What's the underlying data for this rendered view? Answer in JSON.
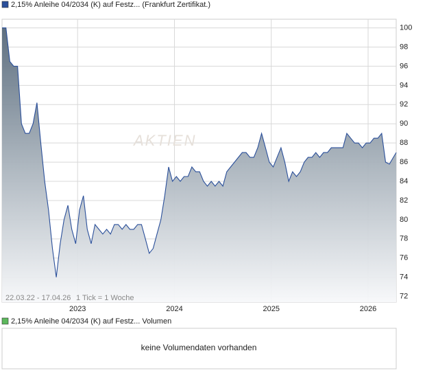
{
  "chart_data": {
    "type": "area",
    "title": "2,15% Anleihe 04/2034 (K) auf Festz... (Frankfurt Zertifikat.)",
    "date_range": "22.03.22 - 17.04.26",
    "tick_note": "1 Tick = 1 Woche",
    "watermark": "AKTIEN",
    "xlim": [
      2022.22,
      2026.29
    ],
    "xticks": [
      2023,
      2024,
      2025,
      2026
    ],
    "ylim": [
      71.4,
      100.9
    ],
    "yticks": [
      72,
      74,
      76,
      78,
      80,
      82,
      84,
      86,
      88,
      90,
      92,
      94,
      96,
      98,
      100
    ],
    "grid": true,
    "series": [
      {
        "color": "#2a4f9a",
        "x": [
          2022.22,
          2022.26,
          2022.3,
          2022.34,
          2022.38,
          2022.42,
          2022.46,
          2022.5,
          2022.54,
          2022.58,
          2022.62,
          2022.66,
          2022.7,
          2022.74,
          2022.78,
          2022.82,
          2022.86,
          2022.9,
          2022.94,
          2022.98,
          2023.02,
          2023.06,
          2023.1,
          2023.14,
          2023.18,
          2023.22,
          2023.26,
          2023.3,
          2023.34,
          2023.38,
          2023.42,
          2023.46,
          2023.5,
          2023.54,
          2023.58,
          2023.62,
          2023.66,
          2023.7,
          2023.74,
          2023.78,
          2023.82,
          2023.86,
          2023.9,
          2023.94,
          2023.98,
          2024.02,
          2024.06,
          2024.1,
          2024.14,
          2024.18,
          2024.22,
          2024.26,
          2024.3,
          2024.34,
          2024.38,
          2024.42,
          2024.46,
          2024.5,
          2024.54,
          2024.58,
          2024.62,
          2024.66,
          2024.7,
          2024.74,
          2024.78,
          2024.82,
          2024.86,
          2024.9,
          2024.94,
          2024.98,
          2025.02,
          2025.06,
          2025.1,
          2025.14,
          2025.18,
          2025.22,
          2025.26,
          2025.3,
          2025.34,
          2025.38,
          2025.42,
          2025.46,
          2025.5,
          2025.54,
          2025.58,
          2025.62,
          2025.66,
          2025.7,
          2025.74,
          2025.78,
          2025.82,
          2025.86,
          2025.9,
          2025.94,
          2025.98,
          2026.02,
          2026.06,
          2026.1,
          2026.14,
          2026.18,
          2026.22,
          2026.26,
          2026.29
        ],
        "values": [
          100,
          100,
          96.5,
          96,
          96,
          90,
          89,
          89,
          90,
          92.2,
          88,
          84,
          81,
          77,
          74,
          77.5,
          80,
          81.5,
          79,
          77.5,
          81,
          82.5,
          79,
          77.5,
          79.5,
          79,
          78.5,
          79,
          78.5,
          79.5,
          79.5,
          79,
          79.5,
          79,
          79,
          79.5,
          79.5,
          78,
          76.5,
          77,
          78.5,
          80,
          82.5,
          85.5,
          84,
          84.5,
          84,
          84.5,
          84.5,
          85.5,
          85,
          85,
          84,
          83.5,
          84,
          83.5,
          84,
          83.5,
          85,
          85.5,
          86,
          86.5,
          87,
          87,
          86.5,
          86.5,
          87.5,
          89,
          87.5,
          86,
          85.5,
          86.5,
          87.5,
          86,
          84,
          85,
          84.5,
          85,
          86,
          86.5,
          86.5,
          87,
          86.5,
          87,
          87,
          87.5,
          87.5,
          87.5,
          87.5,
          89,
          88.5,
          88,
          88,
          87.5,
          88,
          88,
          88.5,
          88.5,
          89,
          86,
          85.8,
          86.5,
          87
        ]
      }
    ]
  },
  "volume_panel": {
    "label": "2,15% Anleihe 04/2034 (K) auf Festz... Volumen",
    "color": "#5cb85c",
    "message": "keine Volumendaten vorhanden"
  }
}
